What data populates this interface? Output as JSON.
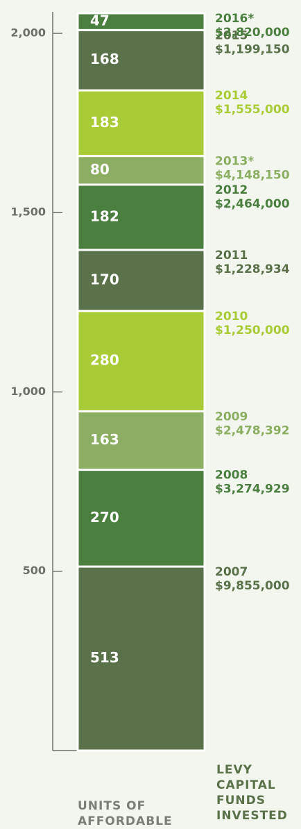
{
  "chart_data": {
    "type": "stacked_bar",
    "categories": [
      "UNITS OF AFFORDABLE HOUSING"
    ],
    "legend_title": "LEVY CAPITAL FUNDS INVESTED",
    "series": [
      {
        "name": "2007",
        "color": "#5a7149",
        "values": [
          513
        ],
        "funds": "$9,855,000"
      },
      {
        "name": "2008",
        "color": "#4b7f3f",
        "values": [
          270
        ],
        "funds": "$3,274,929"
      },
      {
        "name": "2009",
        "color": "#8cae62",
        "values": [
          163
        ],
        "funds": "$2,478,392"
      },
      {
        "name": "2010",
        "color": "#a9cb36",
        "values": [
          280
        ],
        "funds": "$1,250,000"
      },
      {
        "name": "2011",
        "color": "#5a7149",
        "values": [
          170
        ],
        "funds": "$1,228,934"
      },
      {
        "name": "2012",
        "color": "#4b7f3f",
        "values": [
          182
        ],
        "funds": "$2,464,000"
      },
      {
        "name": "2013*",
        "color": "#8cae62",
        "values": [
          80
        ],
        "funds": "$4,148,150"
      },
      {
        "name": "2014",
        "color": "#a9cb36",
        "values": [
          183
        ],
        "funds": "$1,555,000"
      },
      {
        "name": "2015",
        "color": "#5a7149",
        "values": [
          168
        ],
        "funds": "$1,199,150"
      },
      {
        "name": "2016*",
        "color": "#4b7f3f",
        "values": [
          47
        ],
        "funds": "$2,820,000"
      }
    ],
    "ylim": [
      0,
      2060
    ],
    "yticks": [
      500,
      {
        "value": 1000,
        "label": "1,000"
      },
      {
        "value": 1500,
        "label": "1,500"
      },
      {
        "value": 2000,
        "label": "2,000"
      }
    ]
  }
}
